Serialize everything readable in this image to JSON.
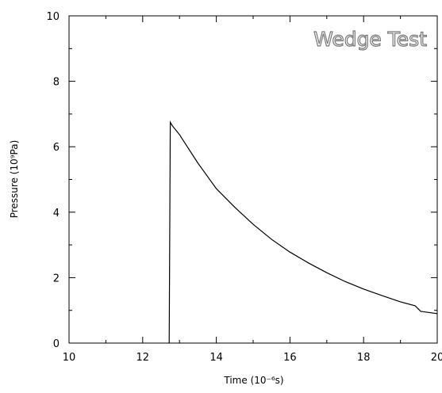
{
  "chart_data": {
    "type": "line",
    "title": "Wedge Test",
    "x_label": "Time  (10⁻⁶s)",
    "y_label": "Pressure  (10⁹Pa)",
    "x": [
      12.72,
      12.75,
      12.8,
      13,
      13.5,
      14,
      14.5,
      15,
      15.5,
      16,
      16.5,
      17,
      17.5,
      18,
      18.5,
      19,
      19.4,
      19.55,
      20
    ],
    "series": [
      {
        "name": "Pressure",
        "color": "#000000",
        "values": [
          0,
          6.75,
          6.65,
          6.37,
          5.5,
          4.72,
          4.15,
          3.63,
          3.17,
          2.78,
          2.45,
          2.15,
          1.88,
          1.65,
          1.45,
          1.26,
          1.14,
          0.97,
          0.9
        ]
      }
    ],
    "xlim": [
      10,
      20
    ],
    "xticks": [
      10,
      12,
      14,
      16,
      18,
      20
    ],
    "xminorticks": [
      11,
      13,
      15,
      17,
      19
    ],
    "ylim": [
      0,
      10
    ],
    "yticks": [
      0,
      2,
      4,
      6,
      8,
      10
    ],
    "yminorticks": [
      1,
      3,
      5,
      7,
      9
    ]
  }
}
